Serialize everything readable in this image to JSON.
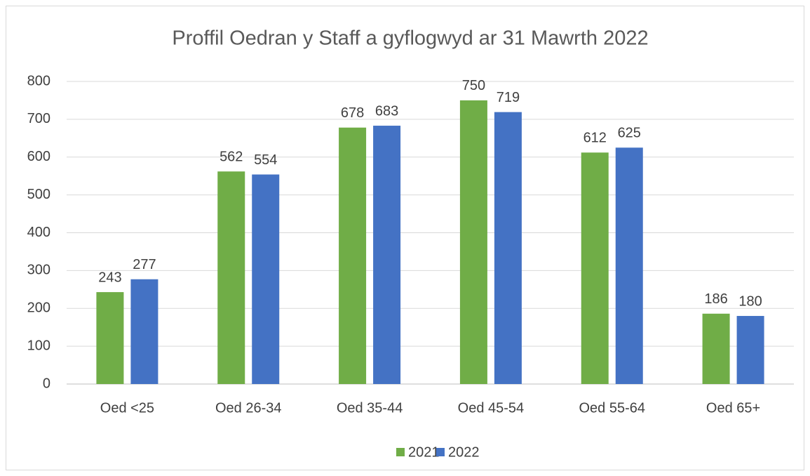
{
  "chart_data": {
    "type": "bar",
    "title": "Proffil Oedran y Staff a gyflogwyd ar 31 Mawrth 2022",
    "categories": [
      "Oed <25",
      "Oed 26-34",
      "Oed 35-44",
      "Oed 45-54",
      "Oed 55-64",
      "Oed 65+"
    ],
    "series": [
      {
        "name": "2021",
        "color": "#70ad47",
        "values": [
          243,
          562,
          678,
          750,
          612,
          186
        ]
      },
      {
        "name": "2022",
        "color": "#4472c4",
        "values": [
          277,
          554,
          683,
          719,
          625,
          180
        ]
      }
    ],
    "ylim": [
      0,
      800
    ],
    "yticks": [
      0,
      100,
      200,
      300,
      400,
      500,
      600,
      700,
      800
    ],
    "grid": true,
    "legend": "bottom"
  }
}
